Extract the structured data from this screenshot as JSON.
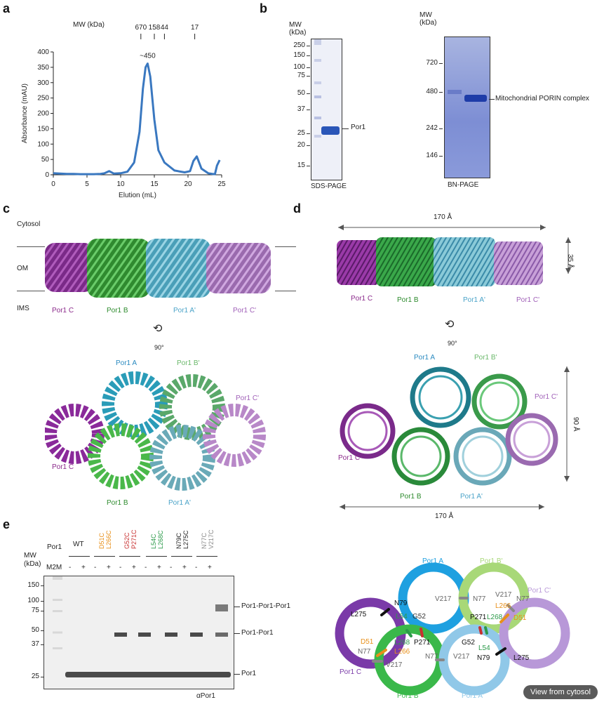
{
  "panels": {
    "a": "a",
    "b": "b",
    "c": "c",
    "d": "d",
    "e": "e"
  },
  "panel_a": {
    "mw_label": "MW (kDa)",
    "mw_markers": [
      "670",
      "158",
      "44",
      "17"
    ],
    "peak_label": "~450",
    "chart_data": {
      "type": "line",
      "xlabel": "Elution (mL)",
      "ylabel": "Absorbance (mAU)",
      "xlim": [
        0,
        25
      ],
      "ylim": [
        0,
        400
      ],
      "x_ticks": [
        "0",
        "5",
        "10",
        "15",
        "20",
        "25"
      ],
      "y_ticks": [
        "0",
        "50",
        "100",
        "150",
        "200",
        "250",
        "300",
        "350",
        "400"
      ],
      "color": "#3a78c0",
      "x": [
        0,
        1,
        2,
        3,
        4,
        5,
        6,
        7,
        7.6,
        8.3,
        9,
        10,
        11,
        12,
        12.8,
        13.3,
        13.7,
        14.0,
        14.4,
        15.0,
        15.6,
        16.5,
        18,
        19.5,
        20.3,
        20.8,
        21.3,
        22,
        23,
        23.6,
        24.0,
        24.3,
        24.7
      ],
      "y": [
        5,
        4,
        3,
        3,
        2,
        2,
        2,
        3,
        5,
        12,
        4,
        5,
        10,
        40,
        140,
        280,
        350,
        362,
        320,
        180,
        80,
        40,
        14,
        8,
        12,
        45,
        60,
        20,
        5,
        3,
        2,
        30,
        48
      ]
    }
  },
  "panel_b": {
    "sds": {
      "mw_header": "MW\n(kDa)",
      "markers": [
        "250",
        "150",
        "100",
        "75",
        "50",
        "37",
        "25",
        "20",
        "15"
      ],
      "band_label": "Por1",
      "caption": "SDS-PAGE"
    },
    "bn": {
      "mw_header": "MW\n(kDa)",
      "markers": [
        "720",
        "480",
        "242",
        "146"
      ],
      "band_label": "Mitochondrial PORIN complex",
      "caption": "BN-PAGE"
    }
  },
  "panel_c": {
    "cytosol": "Cytosol",
    "om": "OM",
    "ims": "IMS",
    "rotation": "90°",
    "side_labels": [
      {
        "text": "Por1 C",
        "color": "#8b2a8b"
      },
      {
        "text": "Por1 B",
        "color": "#2c8a2c"
      },
      {
        "text": "Por1 A'",
        "color": "#4aa3c8"
      },
      {
        "text": "Por1 C'",
        "color": "#a060b8"
      }
    ],
    "top_labels": {
      "A": {
        "text": "Por1 A",
        "color": "#2a8ac0"
      },
      "B2": {
        "text": "Por1 B'",
        "color": "#6ab86a"
      },
      "C2": {
        "text": "Por1 C'",
        "color": "#a060b8"
      },
      "C": {
        "text": "Por1 C",
        "color": "#8b2a8b"
      },
      "B": {
        "text": "Por1 B",
        "color": "#2c8a2c"
      },
      "A2": {
        "text": "Por1 A'",
        "color": "#4aa3c8"
      }
    }
  },
  "panel_d": {
    "width_label": "170 Å",
    "height_label": "35 Å",
    "depth_label": "90 Å",
    "bottom_width_label": "170 Å",
    "rotation": "90°",
    "side_labels": [
      {
        "text": "Por1 C",
        "color": "#8b2a8b"
      },
      {
        "text": "Por1 B",
        "color": "#2c8a2c"
      },
      {
        "text": "Por1 A'",
        "color": "#4aa3c8"
      },
      {
        "text": "Por1 C'",
        "color": "#a060b8"
      }
    ],
    "top_labels": {
      "A": {
        "text": "Por1 A",
        "color": "#2a8ac0"
      },
      "B2": {
        "text": "Por1 B'",
        "color": "#6ab86a"
      },
      "C2": {
        "text": "Por1 C'",
        "color": "#a060b8"
      },
      "C": {
        "text": "Por1 C",
        "color": "#8b2a8b"
      },
      "B": {
        "text": "Por1 B",
        "color": "#2c8a2c"
      },
      "A2": {
        "text": "Por1 A'",
        "color": "#4aa3c8"
      }
    }
  },
  "panel_e": {
    "por1_label": "Por1",
    "m2m_label": "M2M",
    "mw_header": "MW\n(kDa)",
    "lanes": [
      {
        "text": "WT",
        "line2": "",
        "color": "#222222"
      },
      {
        "text": "D51C",
        "line2": "L266C",
        "color": "#e8901a"
      },
      {
        "text": "G52C",
        "line2": "P271C",
        "color": "#c83030"
      },
      {
        "text": "L54C",
        "line2": "L268C",
        "color": "#2c9a4a"
      },
      {
        "text": "N79C",
        "line2": "L275C",
        "color": "#222222"
      },
      {
        "text": "N77C",
        "line2": "V217C",
        "color": "#888888"
      }
    ],
    "m2m_signs": [
      "-",
      "+",
      "-",
      "+",
      "-",
      "+",
      "-",
      "+",
      "-",
      "+",
      "-",
      "+"
    ],
    "markers": [
      "150",
      "100",
      "75",
      "50",
      "37",
      "25"
    ],
    "band_labels": [
      "Por1-Por1-Por1",
      "Por1-Por1",
      "Por1"
    ],
    "antibody": "αPor1",
    "diagram": {
      "rings": {
        "A": {
          "text": "Por1 A",
          "color": "#1ea0e0"
        },
        "B2": {
          "text": "Por1 B'",
          "color": "#a8d878"
        },
        "C2": {
          "text": "Por1 C'",
          "color": "#b898d8"
        },
        "C": {
          "text": "Por1 C",
          "color": "#7a3aa8"
        },
        "B": {
          "text": "Por1 B",
          "color": "#3ab84a"
        },
        "A2": {
          "text": "Por1 A'",
          "color": "#90c8e8"
        }
      },
      "residues": {
        "L275_left": "L275",
        "N79_top": "N79",
        "L54_top": "L54",
        "G52_top": "G52",
        "V217_top": "V217",
        "N77_top": "N77",
        "V217_b2": "V217",
        "N77_c2": "N77",
        "L266_c2": "L266",
        "D51_c2": "D51",
        "P271_b2": "P271",
        "L268_b2": "L268",
        "D51_c": "D51",
        "N77_c": "N77",
        "L268_b": "L268",
        "P271_b": "P271",
        "L266_b": "L266",
        "V217_b": "V217",
        "G52_a2": "G52",
        "L54_a2": "L54",
        "N77_b": "N77",
        "V217_a2": "V217",
        "N79_a2": "N79",
        "L275_c2": "L275"
      },
      "view_button": "View from cytosol"
    }
  }
}
